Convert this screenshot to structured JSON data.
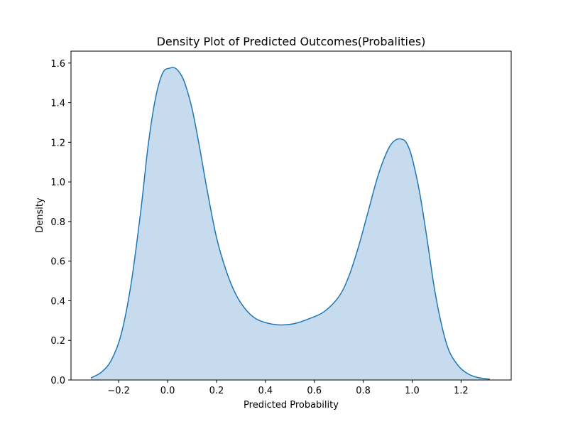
{
  "chart_data": {
    "type": "area",
    "title": "Density Plot of Predicted Outcomes(Probalities)",
    "xlabel": "Predicted Probability",
    "ylabel": "Density",
    "xlim": [
      -0.395,
      1.405
    ],
    "ylim": [
      0.0,
      1.6602
    ],
    "xticks": [
      -0.2,
      0.0,
      0.2,
      0.4,
      0.6,
      0.8,
      1.0,
      1.2
    ],
    "xtick_labels": [
      "−0.2",
      "0.0",
      "0.2",
      "0.4",
      "0.6",
      "0.8",
      "1.0",
      "1.2"
    ],
    "yticks": [
      0.0,
      0.2,
      0.4,
      0.6,
      0.8,
      1.0,
      1.2,
      1.4,
      1.6
    ],
    "ytick_labels": [
      "0.0",
      "0.2",
      "0.4",
      "0.6",
      "0.8",
      "1.0",
      "1.2",
      "1.4",
      "1.6"
    ],
    "grid": false,
    "legend": "none",
    "colors": {
      "line": "#1f77b4",
      "fill": "#c6dbed"
    },
    "series": [
      {
        "x": [
          -0.314,
          -0.27,
          -0.23,
          -0.19,
          -0.15,
          -0.11,
          -0.08,
          -0.05,
          -0.02,
          0.01,
          0.03,
          0.05,
          0.07,
          0.1,
          0.13,
          0.16,
          0.2,
          0.24,
          0.28,
          0.32,
          0.36,
          0.4,
          0.44,
          0.47,
          0.52,
          0.58,
          0.64,
          0.7,
          0.74,
          0.78,
          0.82,
          0.86,
          0.9,
          0.93,
          0.96,
          0.98,
          1.0,
          1.03,
          1.06,
          1.09,
          1.12,
          1.15,
          1.19,
          1.23,
          1.27,
          1.318
        ],
        "y": [
          0.01,
          0.04,
          0.1,
          0.23,
          0.48,
          0.85,
          1.18,
          1.42,
          1.55,
          1.575,
          1.575,
          1.55,
          1.5,
          1.37,
          1.18,
          0.97,
          0.72,
          0.55,
          0.43,
          0.355,
          0.31,
          0.29,
          0.28,
          0.278,
          0.285,
          0.31,
          0.345,
          0.42,
          0.52,
          0.67,
          0.85,
          1.03,
          1.16,
          1.21,
          1.215,
          1.19,
          1.12,
          0.95,
          0.72,
          0.47,
          0.28,
          0.15,
          0.07,
          0.03,
          0.012,
          0.004
        ]
      }
    ]
  }
}
